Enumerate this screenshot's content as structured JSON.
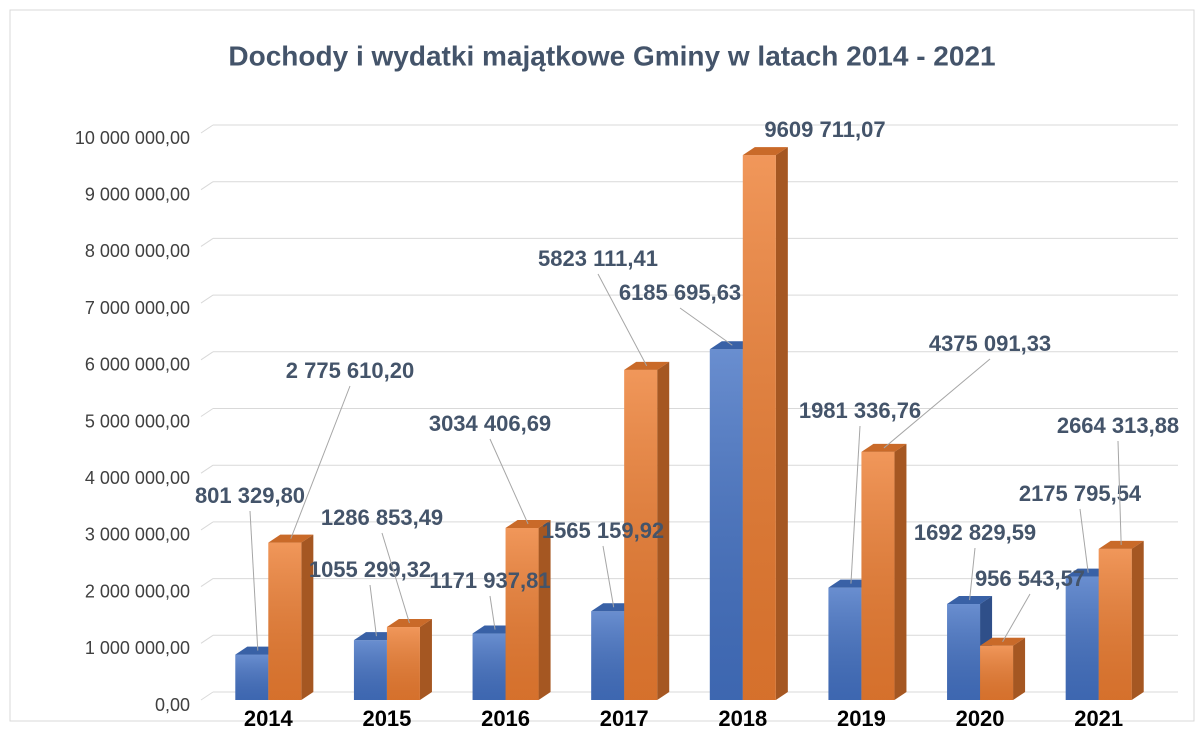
{
  "chart_data": {
    "type": "bar3d",
    "title": "Dochody i wydatki majątkowe Gminy w latach 2014 - 2021",
    "categories": [
      "2014",
      "2015",
      "2016",
      "2017",
      "2018",
      "2019",
      "2020",
      "2021"
    ],
    "series": [
      {
        "color": "#4472c4",
        "values": [
          801329.8,
          1055299.32,
          1171937.81,
          1565159.92,
          6185695.63,
          1981336.76,
          1692829.59,
          2175795.54
        ],
        "value_labels": [
          "801 329,80",
          "1055 299,32",
          "1171 937,81",
          "1565 159,92",
          "6185 695,63",
          "1981 336,76",
          "1692 829,59",
          "2175 795,54"
        ]
      },
      {
        "color": "#ed7d31",
        "values": [
          2775610.2,
          1286853.49,
          3034406.69,
          5823111.41,
          9609711.07,
          4375091.33,
          956543.57,
          2664313.88
        ],
        "value_labels": [
          "2 775 610,20",
          "1286 853,49",
          "3034 406,69",
          "5823 111,41",
          "9609 711,07",
          "4375 091,33",
          "956 543,57",
          "2664 313,88"
        ]
      }
    ],
    "ylim": [
      0,
      10000000
    ],
    "yticks": [
      {
        "value": 0,
        "label": "0,00"
      },
      {
        "value": 1000000,
        "label": "1 000 000,00"
      },
      {
        "value": 2000000,
        "label": "2 000 000,00"
      },
      {
        "value": 3000000,
        "label": "3 000 000,00"
      },
      {
        "value": 4000000,
        "label": "4 000 000,00"
      },
      {
        "value": 5000000,
        "label": "5 000 000,00"
      },
      {
        "value": 6000000,
        "label": "6 000 000,00"
      },
      {
        "value": 7000000,
        "label": "7 000 000,00"
      },
      {
        "value": 8000000,
        "label": "8 000 000,00"
      },
      {
        "value": 9000000,
        "label": "9 000 000,00"
      },
      {
        "value": 10000000,
        "label": "10 000 000,00"
      }
    ],
    "grid": true
  }
}
